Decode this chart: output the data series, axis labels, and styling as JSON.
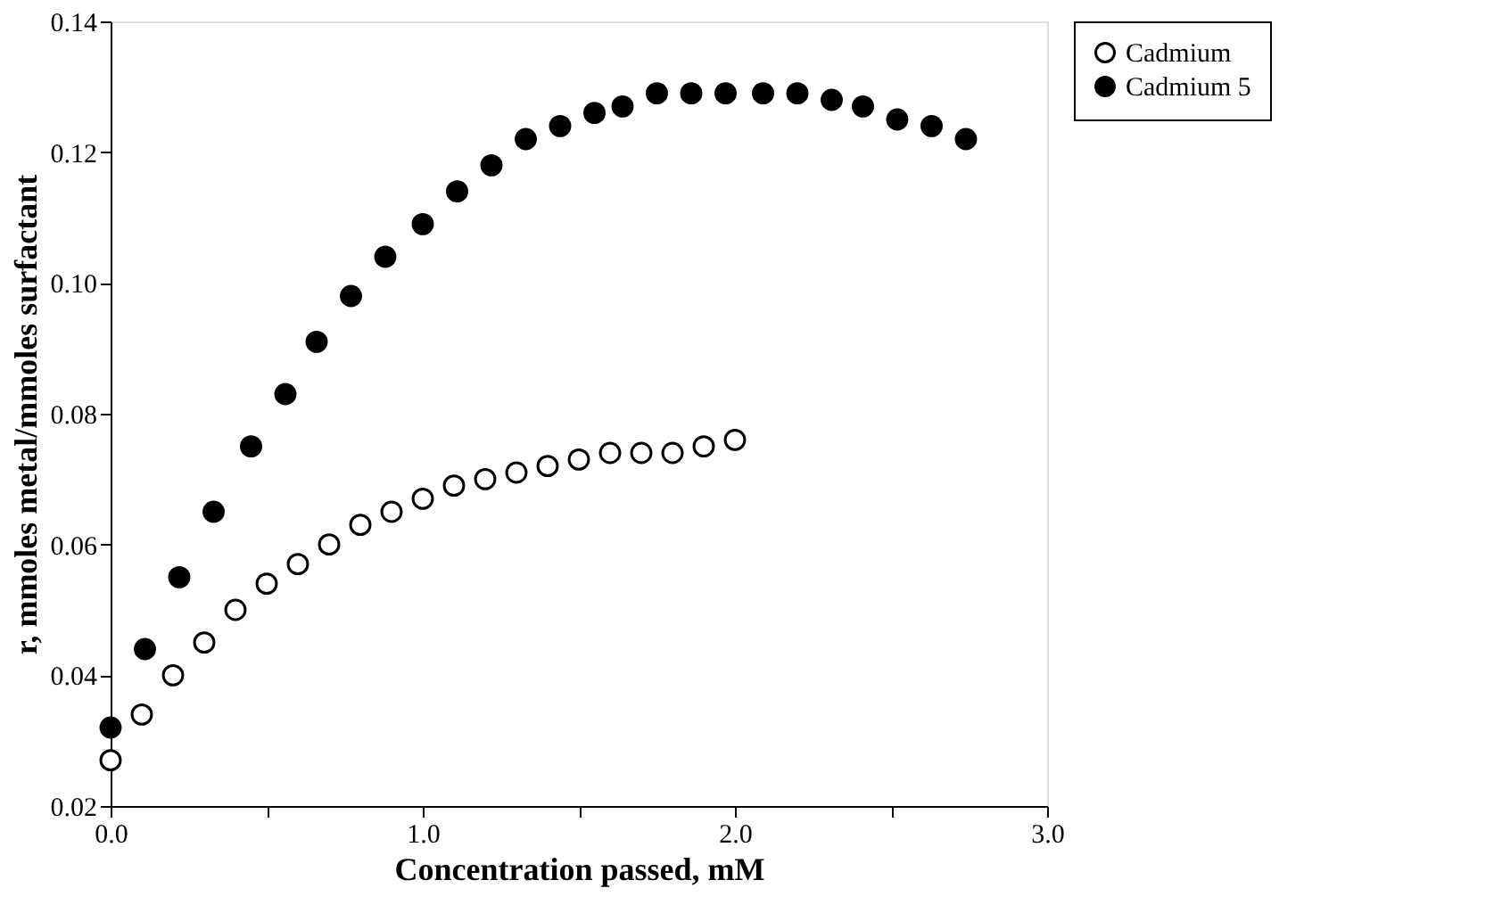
{
  "chart_data": {
    "type": "scatter",
    "xlabel": "Concentration passed, mM",
    "ylabel": "r, mmoles metal/mmoles surfactant",
    "xlim": [
      0,
      3.0
    ],
    "xticks": [
      {
        "value": 0,
        "label": "0.0"
      },
      {
        "value": 0.5,
        "label": null
      },
      {
        "value": 1,
        "label": "1.0"
      },
      {
        "value": 1.5,
        "label": null
      },
      {
        "value": 2,
        "label": "2.0"
      },
      {
        "value": 2.5,
        "label": null
      },
      {
        "value": 3,
        "label": "3.0"
      }
    ],
    "ylim": [
      0.02,
      0.14
    ],
    "yticks": [
      {
        "value": 0.02,
        "label": "0.02"
      },
      {
        "value": 0.04,
        "label": "0.04"
      },
      {
        "value": 0.06,
        "label": "0.06"
      },
      {
        "value": 0.08,
        "label": "0.08"
      },
      {
        "value": 0.1,
        "label": "0.10"
      },
      {
        "value": 0.12,
        "label": "0.12"
      },
      {
        "value": 0.14,
        "label": "0.14"
      }
    ],
    "grid": false,
    "legend": "right",
    "marker": "circle",
    "series": [
      {
        "name": "Cadmium",
        "color": "#ffffff",
        "x": [
          0,
          0.1,
          0.2,
          0.3,
          0.4,
          0.5,
          0.6,
          0.7,
          0.8,
          0.9,
          1.0,
          1.1,
          1.2,
          1.3,
          1.4,
          1.5,
          1.6,
          1.7,
          1.8,
          1.9,
          2.0
        ],
        "values": [
          0.027,
          0.034,
          0.04,
          0.045,
          0.05,
          0.054,
          0.057,
          0.06,
          0.063,
          0.065,
          0.067,
          0.069,
          0.07,
          0.071,
          0.072,
          0.073,
          0.074,
          0.074,
          0.074,
          0.075,
          0.076
        ]
      },
      {
        "name": "Cadmium 5",
        "color": "#000000",
        "x": [
          0,
          0.11,
          0.22,
          0.33,
          0.45,
          0.56,
          0.66,
          0.77,
          0.88,
          1.0,
          1.11,
          1.22,
          1.33,
          1.44,
          1.55,
          1.64,
          1.75,
          1.86,
          1.97,
          2.09,
          2.2,
          2.31,
          2.41,
          2.52,
          2.63,
          2.74
        ],
        "values": [
          0.032,
          0.044,
          0.055,
          0.065,
          0.075,
          0.083,
          0.091,
          0.098,
          0.104,
          0.109,
          0.114,
          0.118,
          0.122,
          0.124,
          0.126,
          0.127,
          0.129,
          0.129,
          0.129,
          0.129,
          0.129,
          0.128,
          0.127,
          0.125,
          0.124,
          0.122
        ]
      }
    ]
  }
}
